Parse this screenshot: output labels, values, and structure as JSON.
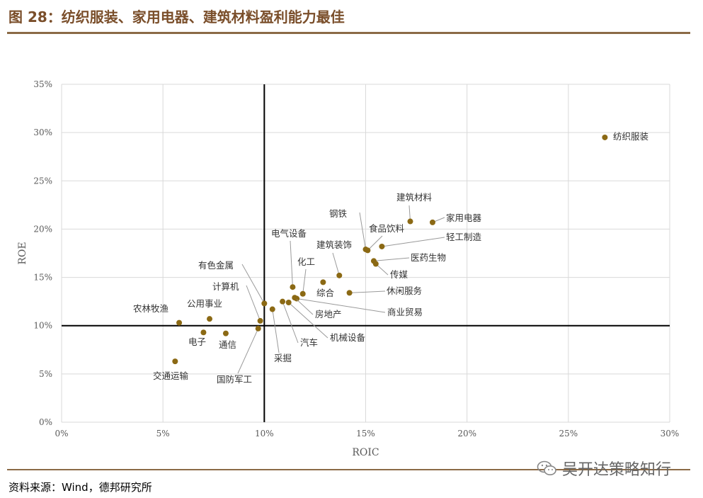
{
  "figure": {
    "title": "图 28：纺织服装、家用电器、建筑材料盈利能力最佳",
    "source": "资料来源：Wind，德邦研究所",
    "watermark": "吴开达策略知行",
    "watermark_icon": "wechat-icon"
  },
  "colors": {
    "title": "#7a4e2a",
    "rule": "#8b6a46",
    "point": "#8b6914",
    "grid": "#d9d9d9",
    "crosshair": "#000000"
  },
  "chart_data": {
    "type": "scatter",
    "title": "",
    "xlabel": "ROIC",
    "ylabel": "ROE",
    "xlim": [
      0,
      30
    ],
    "ylim": [
      0,
      35
    ],
    "xticks": [
      "0%",
      "5%",
      "10%",
      "15%",
      "20%",
      "25%",
      "30%"
    ],
    "yticks": [
      "0%",
      "5%",
      "10%",
      "15%",
      "20%",
      "25%",
      "30%",
      "35%"
    ],
    "grid": true,
    "reference_lines": {
      "x": 10,
      "y": 10
    },
    "points": [
      {
        "name": "纺织服装",
        "x": 26.8,
        "y": 29.5
      },
      {
        "name": "家用电器",
        "x": 18.3,
        "y": 20.7
      },
      {
        "name": "建筑材料",
        "x": 17.2,
        "y": 20.8
      },
      {
        "name": "轻工制造",
        "x": 15.8,
        "y": 18.2
      },
      {
        "name": "钢铁",
        "x": 15.0,
        "y": 17.9
      },
      {
        "name": "食品饮料",
        "x": 15.1,
        "y": 17.8
      },
      {
        "name": "医药生物",
        "x": 15.4,
        "y": 16.7
      },
      {
        "name": "传媒",
        "x": 15.5,
        "y": 16.4
      },
      {
        "name": "建筑装饰",
        "x": 13.7,
        "y": 15.2
      },
      {
        "name": "休闲服务",
        "x": 14.2,
        "y": 13.4
      },
      {
        "name": "综合",
        "x": 12.9,
        "y": 14.5
      },
      {
        "name": "电气设备",
        "x": 11.4,
        "y": 14.0
      },
      {
        "name": "化工",
        "x": 11.9,
        "y": 13.3
      },
      {
        "name": "商业贸易",
        "x": 11.6,
        "y": 12.8
      },
      {
        "name": "房地产",
        "x": 11.5,
        "y": 12.9
      },
      {
        "name": "机械设备",
        "x": 11.2,
        "y": 12.4
      },
      {
        "name": "汽车",
        "x": 10.9,
        "y": 12.5
      },
      {
        "name": "采掘",
        "x": 10.4,
        "y": 11.7
      },
      {
        "name": "有色金属",
        "x": 10.0,
        "y": 12.3
      },
      {
        "name": "计算机",
        "x": 9.8,
        "y": 10.5
      },
      {
        "name": "国防军工",
        "x": 9.7,
        "y": 9.7
      },
      {
        "name": "通信",
        "x": 8.1,
        "y": 9.2
      },
      {
        "name": "电子",
        "x": 7.0,
        "y": 9.3
      },
      {
        "name": "公用事业",
        "x": 7.3,
        "y": 10.7
      },
      {
        "name": "农林牧渔",
        "x": 5.8,
        "y": 10.3
      },
      {
        "name": "交通运输",
        "x": 5.6,
        "y": 6.3
      }
    ]
  }
}
